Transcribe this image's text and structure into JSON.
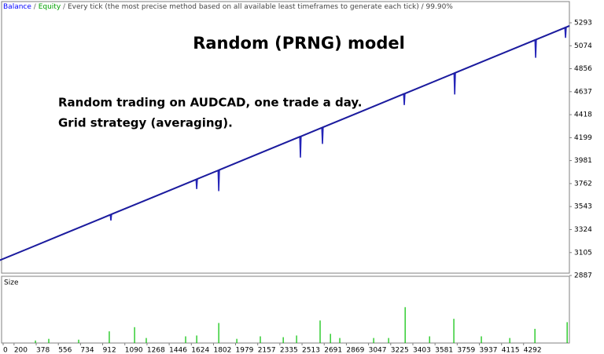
{
  "chart_data": [
    {
      "type": "line",
      "title": "Random (PRNG) model",
      "subtitle": "Every tick (the most precise method based on all available least timeframes to generate each tick) / 99.90%",
      "separator": " / ",
      "annotations": [
        "Random trading on AUDCAD, one trade a day.",
        "Grid strategy (averaging)."
      ],
      "x": [
        0,
        300,
        600,
        900,
        973,
        978,
        983,
        1300,
        1662,
        1667,
        1672,
        1839,
        1844,
        1849,
        2200,
        2495,
        2500,
        2505,
        2672,
        2677,
        2682,
        3000,
        3329,
        3334,
        3339,
        3734,
        3739,
        3744,
        4100,
        4384,
        4389,
        4394,
        4624,
        4629,
        4634,
        4660
      ],
      "series": [
        {
          "name": "Balance",
          "color": "#1c1c9e",
          "values": [
            2990,
            3136,
            3283,
            3429,
            3465,
            3467,
            3470,
            3624,
            3801,
            3803,
            3806,
            3887,
            3890,
            3892,
            4064,
            4208,
            4210,
            4212,
            4294,
            4296,
            4299,
            4454,
            4615,
            4617,
            4619,
            4812,
            4815,
            4817,
            4991,
            5129,
            5132,
            5134,
            5246,
            5249,
            5251,
            5264
          ]
        },
        {
          "name": "Equity",
          "color": "#2424b8",
          "values": [
            2990,
            3136,
            3283,
            3429,
            3465,
            3410,
            3470,
            3624,
            3801,
            3710,
            3806,
            3887,
            3690,
            3892,
            4064,
            4208,
            4010,
            4212,
            4294,
            4140,
            4299,
            4454,
            4615,
            4510,
            4619,
            4812,
            4610,
            4817,
            4991,
            5129,
            4960,
            5134,
            5246,
            5150,
            5251,
            5264
          ]
        }
      ],
      "xlim": [
        100,
        4660
      ],
      "xticks": [
        0,
        200,
        378,
        556,
        734,
        912,
        1090,
        1268,
        1446,
        1624,
        1802,
        1979,
        2157,
        2335,
        2513,
        2691,
        2869,
        3047,
        3225,
        3403,
        3581,
        3759,
        3937,
        4115,
        4292
      ],
      "ylim": [
        2909,
        5495
      ],
      "yticks": [
        2887,
        3105,
        3324,
        3543,
        3762,
        3981,
        4199,
        4418,
        4637,
        4856,
        5074,
        5293
      ]
    },
    {
      "type": "bar",
      "title": "Size",
      "color": "#00c000",
      "x": [
        372,
        479,
        719,
        965,
        1168,
        1262,
        1578,
        1667,
        1844,
        1989,
        2178,
        2362,
        2469,
        2658,
        2741,
        2816,
        3088,
        3208,
        3341,
        3537,
        3732,
        3953,
        4181,
        4383,
        4642
      ],
      "values": [
        0.03,
        0.05,
        0.04,
        0.14,
        0.19,
        0.06,
        0.08,
        0.09,
        0.24,
        0.05,
        0.08,
        0.07,
        0.09,
        0.27,
        0.11,
        0.06,
        0.06,
        0.06,
        0.43,
        0.08,
        0.29,
        0.08,
        0.06,
        0.17,
        0.25
      ],
      "xlim": [
        100,
        4660
      ],
      "ylim": [
        0,
        0.8
      ]
    }
  ]
}
